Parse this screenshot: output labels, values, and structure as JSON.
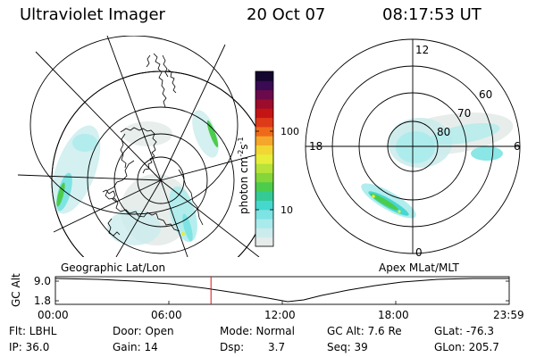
{
  "header": {
    "instrument": "Ultraviolet Imager",
    "date": "20 Oct 07",
    "time": "08:17:53 UT"
  },
  "left_map": {
    "label": "Geographic Lat/Lon"
  },
  "right_map": {
    "label": "Apex MLat/MLT",
    "mlt_labels": {
      "top": "12",
      "left": "18",
      "right": "6",
      "bottom": "0"
    },
    "lat_labels": [
      "60",
      "70",
      "80"
    ]
  },
  "colorbar": {
    "unit_label": "photon cm",
    "unit_exp1": "-2",
    "unit_mid": "s",
    "unit_exp2": "-1",
    "tick_100": "100",
    "tick_10": "10",
    "colors": [
      "#e6ecea",
      "#ccebec",
      "#a9ebec",
      "#7ee3e3",
      "#46d7cf",
      "#35c996",
      "#4ccc4c",
      "#84d63a",
      "#b6e23a",
      "#e6ee3a",
      "#f2d634",
      "#f4a72a",
      "#ee6a1a",
      "#dd3a1a",
      "#c41414",
      "#9c0c2c",
      "#6a0a4a",
      "#3a0a52",
      "#14062e"
    ]
  },
  "altitude_plot": {
    "axis_label": "GC Alt",
    "y_ticks": [
      "9.0",
      "1.8"
    ],
    "x_ticks": [
      "00:00",
      "06:00",
      "12:00",
      "18:00",
      "23:59"
    ],
    "current_time_fraction": 0.343
  },
  "info": {
    "flt": "Flt: LBHL",
    "door": "Door: Open",
    "mode": "Mode: Normal",
    "gc_alt": "GC Alt: 7.6 Re",
    "glat": "GLat: -76.3",
    "ip": "IP: 36.0",
    "gain": "Gain: 14",
    "dsp_label": "Dsp:",
    "dsp_value": "3.7",
    "seq": "Seq: 39",
    "glon": "GLon: 205.7"
  },
  "colors": {
    "aurora_teal": "#46d7cf",
    "aurora_green": "#4ccc4c",
    "aurora_yellow": "#e6ee3a",
    "marker_red": "#e01010"
  }
}
